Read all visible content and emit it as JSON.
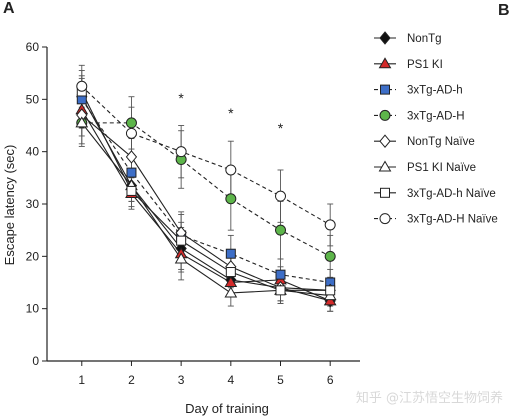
{
  "panels": {
    "a": "A",
    "b": "B"
  },
  "watermark": "知乎 @江苏悟空生物饲养",
  "chart_data": {
    "type": "line",
    "xlabel": "Day of training",
    "ylabel": "Escape latency (sec)",
    "xlim": [
      0.3,
      6.6
    ],
    "ylim": [
      0,
      60
    ],
    "x_ticks": [
      1,
      2,
      3,
      4,
      5,
      6
    ],
    "y_ticks": [
      0,
      10,
      20,
      30,
      40,
      50,
      60
    ],
    "grid": false,
    "legend_position": "right",
    "significance": [
      {
        "x": 3,
        "label": "*"
      },
      {
        "x": 4,
        "label": "*"
      },
      {
        "x": 5,
        "label": "*"
      }
    ],
    "series": [
      {
        "name": "NonTg",
        "marker": "diamond",
        "fill": "#111111",
        "line": "solid",
        "values": [
          50.5,
          33.5,
          21.5,
          15.5,
          14,
          11.5
        ],
        "error": [
          4,
          3,
          4,
          3,
          2.5,
          2
        ]
      },
      {
        "name": "PS1 KI",
        "marker": "triangle",
        "fill": "#d42a2a",
        "line": "solid",
        "values": [
          48,
          32,
          20.5,
          15,
          15.5,
          11.5
        ],
        "error": [
          3.5,
          3,
          3.5,
          2.5,
          2.5,
          2
        ]
      },
      {
        "name": "3xTg-AD-h",
        "marker": "square",
        "fill": "#3d6ec7",
        "line": "dashed",
        "values": [
          50,
          36,
          24,
          20.5,
          16.5,
          15
        ],
        "error": [
          4,
          3.5,
          4,
          3.5,
          3,
          2.5
        ]
      },
      {
        "name": "3xTg-AD-H",
        "marker": "circle",
        "fill": "#5db54a",
        "line": "dashed",
        "values": [
          45.5,
          45.5,
          38.5,
          31,
          25,
          20
        ],
        "error": [
          4.5,
          5,
          5.5,
          6,
          5.5,
          4
        ]
      },
      {
        "name": "NonTg Naïve",
        "marker": "diamond",
        "fill": "#ffffff",
        "line": "solid",
        "values": [
          47,
          39,
          24.5,
          18,
          14,
          13.5
        ],
        "error": [
          4,
          3.5,
          4,
          3,
          2.5,
          2
        ]
      },
      {
        "name": "PS1 KI Naïve",
        "marker": "triangle",
        "fill": "#ffffff",
        "line": "solid",
        "values": [
          45.5,
          33.5,
          19.5,
          13,
          13.5,
          12.5
        ],
        "error": [
          4,
          3,
          4,
          2.5,
          2.5,
          2
        ]
      },
      {
        "name": "3xTg-AD-h Naïve",
        "marker": "square",
        "fill": "#ffffff",
        "line": "solid",
        "values": [
          51.5,
          32.5,
          23,
          17,
          13.5,
          13.5
        ],
        "error": [
          4,
          3,
          3.5,
          3,
          2.5,
          2
        ]
      },
      {
        "name": "3xTg-AD-H Naïve",
        "marker": "circle",
        "fill": "#ffffff",
        "line": "dashed",
        "values": [
          52.5,
          43.5,
          40,
          36.5,
          31.5,
          26
        ],
        "error": [
          4,
          5,
          5,
          5.5,
          5,
          4
        ]
      }
    ]
  }
}
